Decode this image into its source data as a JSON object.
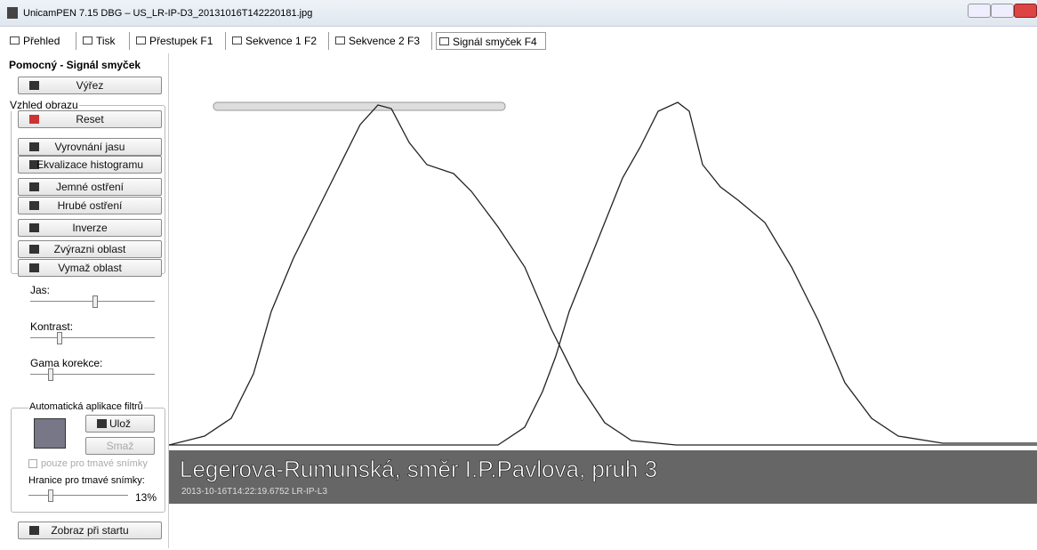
{
  "window": {
    "title": "UnicamPEN 7.15 DBG – US_LR-IP-D3_20131016T142220181.jpg"
  },
  "tabs": [
    "Přehled",
    "Tisk",
    "Přestupek F1",
    "Sekvence 1 F2",
    "Sekvence 2 F3",
    "Signál smyček F4"
  ],
  "panel": {
    "title": "Pomocný - Signál smyček",
    "crop_button": "Výřez",
    "view_group": {
      "title": "Vzhled obrazu",
      "buttons": [
        "Reset",
        "Vyrovnání jasu",
        "Ekvalizace histogramu",
        "Jemné ostření",
        "Hrubé ostření",
        "Inverze",
        "Zvýrazni oblast",
        "Vymaž oblast"
      ]
    },
    "sliders": [
      "Jas:",
      "Kontrast:",
      "Gama korekce:"
    ],
    "auto_group": {
      "title": "Automatická aplikace filtrů",
      "save": "Ulož",
      "delete": "Smaž",
      "checkbox": "pouze pro tmavé snímky",
      "threshold_label": "Hranice pro tmavé snímky:",
      "threshold_value": "13%"
    },
    "startup_button": "Zobraz při startu"
  },
  "image": {
    "location": "Legerova-Rumunská, směr I.P.Pavlova, pruh 3",
    "timestamp": "2013-10-16T14:22:19.6752 LR-IP-L3"
  }
}
